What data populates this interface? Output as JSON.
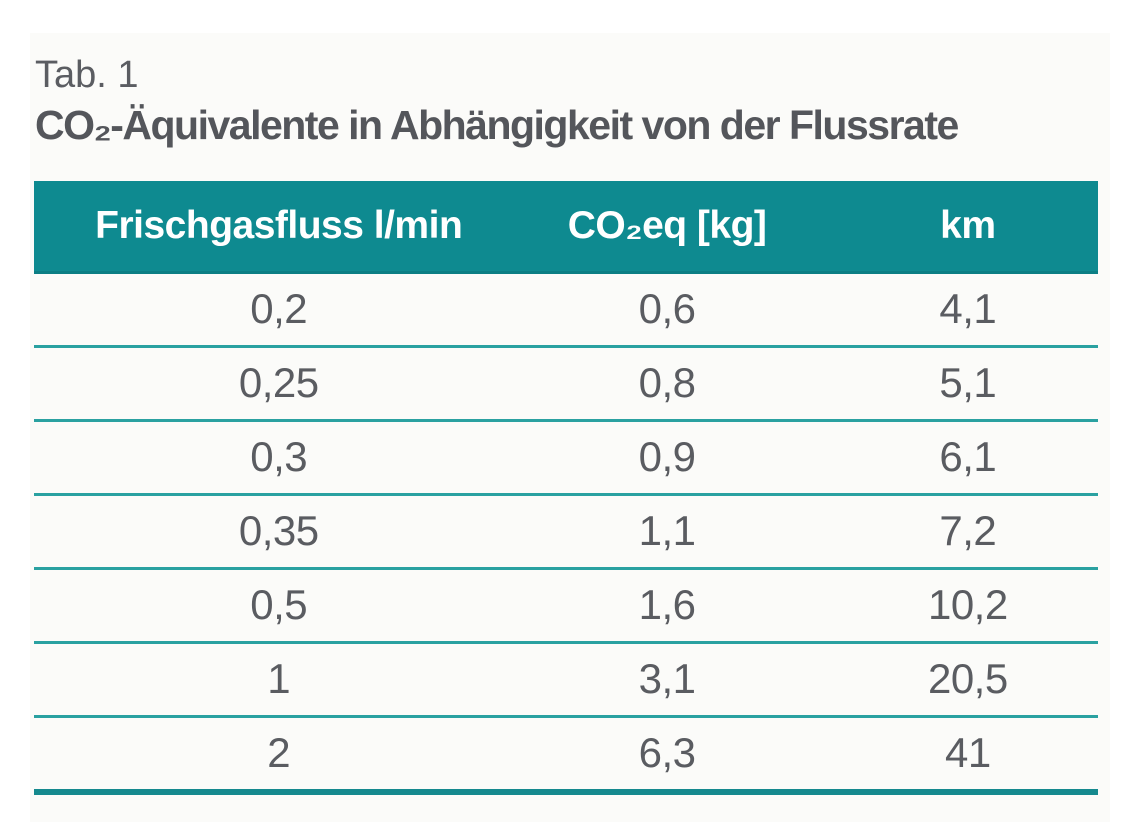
{
  "caption": {
    "label": "Tab. 1",
    "title": "CO₂-Äquivalente in Abhängigkeit von der Flussrate"
  },
  "table": {
    "columns": [
      "Frischgasfluss l/min",
      "CO₂eq [kg]",
      "km"
    ],
    "rows": [
      [
        "0,2",
        "0,6",
        "4,1"
      ],
      [
        "0,25",
        "0,8",
        "5,1"
      ],
      [
        "0,3",
        "0,9",
        "6,1"
      ],
      [
        "0,35",
        "1,1",
        "7,2"
      ],
      [
        "0,5",
        "1,6",
        "10,2"
      ],
      [
        "1",
        "3,1",
        "20,5"
      ],
      [
        "2",
        "6,3",
        "41"
      ]
    ]
  },
  "chart_data": {
    "type": "table",
    "title": "CO₂-Äquivalente in Abhängigkeit von der Flussrate",
    "caption_label": "Tab. 1",
    "columns": [
      "Frischgasfluss l/min",
      "CO₂eq [kg]",
      "km"
    ],
    "rows": [
      [
        "0,2",
        "0,6",
        "4,1"
      ],
      [
        "0,25",
        "0,8",
        "5,1"
      ],
      [
        "0,3",
        "0,9",
        "6,1"
      ],
      [
        "0,35",
        "1,1",
        "7,2"
      ],
      [
        "0,5",
        "1,6",
        "10,2"
      ],
      [
        "1",
        "3,1",
        "20,5"
      ],
      [
        "2",
        "6,3",
        "41"
      ]
    ]
  },
  "colors": {
    "header_bg": "#0e8a90",
    "header_text": "#ffffff",
    "row_divider": "#2aa1a1",
    "bottom_border": "#15898e",
    "body_text": "#5a5c61",
    "title_text": "#54565b",
    "panel_bg": "#fbfbf9"
  }
}
